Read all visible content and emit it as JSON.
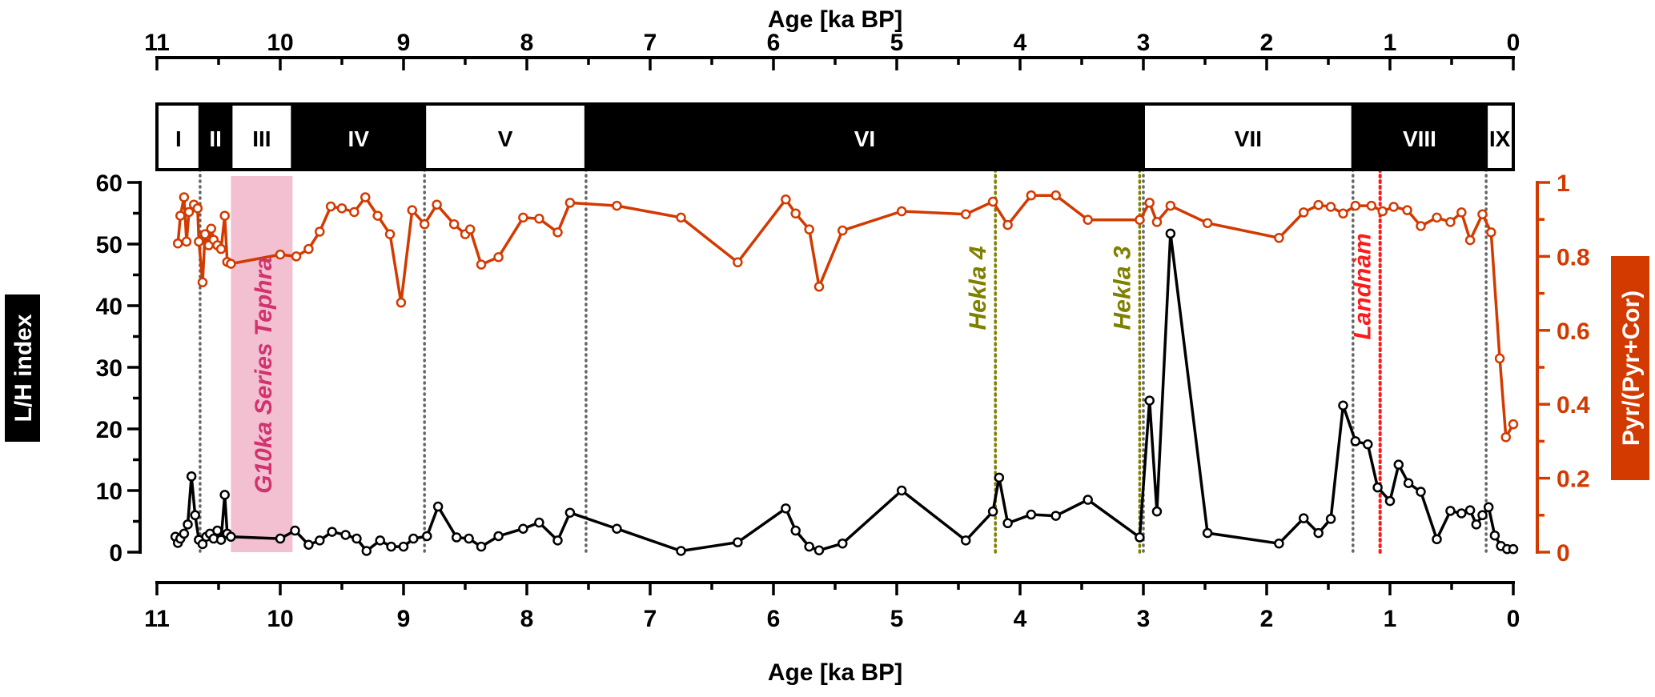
{
  "chart_data": {
    "type": "line",
    "x_title_top": "Age [ka BP]",
    "x_title_bottom": "Age [ka BP]",
    "xlim": [
      11,
      0
    ],
    "x_ticks": [
      "11",
      "10",
      "9",
      "8",
      "7",
      "6",
      "5",
      "4",
      "3",
      "2",
      "1",
      "0"
    ],
    "y_left": {
      "label": "L/H index",
      "ylim": [
        0,
        60
      ],
      "ticks": [
        "0",
        "10",
        "20",
        "30",
        "40",
        "50",
        "60"
      ],
      "color": "#000000"
    },
    "y_right": {
      "label": "Pyr/(Pyr+Cor)",
      "ylim": [
        0,
        1
      ],
      "ticks": [
        "0",
        "0.2",
        "0.4",
        "0.6",
        "0.8",
        "1"
      ],
      "color": "#d23a00"
    },
    "zones": [
      {
        "label": "I",
        "from": 11,
        "to": 10.65,
        "fill": "white"
      },
      {
        "label": "II",
        "from": 10.65,
        "to": 10.4,
        "fill": "black"
      },
      {
        "label": "III",
        "from": 10.4,
        "to": 9.9,
        "fill": "white"
      },
      {
        "label": "IV",
        "from": 9.9,
        "to": 8.83,
        "fill": "black"
      },
      {
        "label": "V",
        "from": 8.83,
        "to": 7.52,
        "fill": "white"
      },
      {
        "label": "VI",
        "from": 7.52,
        "to": 3.0,
        "fill": "black"
      },
      {
        "label": "VII",
        "from": 3.0,
        "to": 1.3,
        "fill": "white"
      },
      {
        "label": "VIII",
        "from": 1.3,
        "to": 0.22,
        "fill": "black"
      },
      {
        "label": "IX",
        "from": 0.22,
        "to": 0,
        "fill": "white"
      }
    ],
    "zone_boundaries": [
      10.65,
      8.83,
      7.52,
      3.0,
      1.3,
      0.22
    ],
    "annotations": [
      {
        "label": "G10ka Series Tephra",
        "type": "band",
        "from": 10.4,
        "to": 9.9,
        "color": "#f2c0d0",
        "text_color": "#d1336e"
      },
      {
        "label": "Hekla 4",
        "type": "line",
        "x": 4.2,
        "color": "#808000"
      },
      {
        "label": "Hekla 3",
        "type": "line",
        "x": 3.03,
        "color": "#808000"
      },
      {
        "label": "Landnàm",
        "type": "line",
        "x": 1.08,
        "color": "#ff1a1a"
      }
    ],
    "series": [
      {
        "name": "L/H index",
        "axis": "left",
        "color": "#000000",
        "x": [
          10.85,
          10.83,
          10.81,
          10.78,
          10.75,
          10.72,
          10.69,
          10.66,
          10.63,
          10.6,
          10.57,
          10.54,
          10.51,
          10.48,
          10.45,
          10.43,
          10.4,
          10.0,
          9.88,
          9.77,
          9.68,
          9.58,
          9.47,
          9.38,
          9.3,
          9.19,
          9.1,
          9.0,
          8.92,
          8.81,
          8.72,
          8.57,
          8.47,
          8.37,
          8.23,
          8.03,
          7.9,
          7.75,
          7.65,
          7.27,
          6.75,
          6.29,
          5.9,
          5.82,
          5.71,
          5.63,
          5.44,
          4.96,
          4.44,
          4.22,
          4.17,
          4.1,
          3.91,
          3.71,
          3.45,
          3.03,
          2.95,
          2.89,
          2.78,
          2.48,
          1.9,
          1.7,
          1.58,
          1.48,
          1.38,
          1.28,
          1.18,
          1.1,
          1.0,
          0.93,
          0.85,
          0.75,
          0.62,
          0.51,
          0.42,
          0.35,
          0.3,
          0.25,
          0.2,
          0.15,
          0.1,
          0.05,
          0.0
        ],
        "y": [
          2.5,
          1.5,
          2.2,
          3,
          4.5,
          12.3,
          6,
          2,
          1.3,
          2.5,
          3,
          2.2,
          3.5,
          2,
          9.3,
          3,
          2.5,
          2.2,
          3.5,
          1.2,
          1.9,
          3.3,
          2.8,
          2.2,
          0.2,
          1.9,
          0.9,
          0.9,
          2.2,
          2.6,
          7.4,
          2.4,
          2.2,
          0.9,
          2.6,
          3.8,
          4.8,
          1.9,
          6.4,
          3.8,
          0.2,
          1.6,
          7.1,
          3.5,
          0.9,
          0.3,
          1.4,
          10,
          1.9,
          6.6,
          12.1,
          4.7,
          6.1,
          5.9,
          8.5,
          2.4,
          24.6,
          6.6,
          51.7,
          3.1,
          1.4,
          5.5,
          3.1,
          5.4,
          23.8,
          18,
          17.5,
          10.5,
          8.3,
          14.2,
          11.2,
          9.8,
          2.1,
          6.7,
          6.3,
          6.8,
          4.5,
          6.0,
          7.3,
          2.7,
          1.0,
          0.5,
          0.5
        ]
      },
      {
        "name": "Pyr/(Pyr+Cor)",
        "axis": "right",
        "color": "#d23a00",
        "x": [
          10.83,
          10.81,
          10.78,
          10.76,
          10.74,
          10.7,
          10.67,
          10.66,
          10.63,
          10.61,
          10.58,
          10.56,
          10.54,
          10.51,
          10.48,
          10.45,
          10.43,
          10.4,
          10.0,
          9.87,
          9.77,
          9.68,
          9.59,
          9.5,
          9.4,
          9.31,
          9.21,
          9.11,
          9.02,
          8.93,
          8.83,
          8.73,
          8.59,
          8.5,
          8.46,
          8.37,
          8.23,
          8.03,
          7.9,
          7.75,
          7.65,
          7.27,
          6.75,
          6.29,
          5.9,
          5.82,
          5.71,
          5.63,
          5.44,
          4.96,
          4.44,
          4.22,
          4.1,
          3.91,
          3.71,
          3.45,
          3.03,
          2.95,
          2.89,
          2.78,
          2.48,
          1.9,
          1.7,
          1.58,
          1.48,
          1.38,
          1.28,
          1.15,
          1.06,
          0.97,
          0.86,
          0.75,
          0.62,
          0.51,
          0.42,
          0.35,
          0.25,
          0.18,
          0.11,
          0.06,
          0.0
        ],
        "y": [
          0.835,
          0.91,
          0.96,
          0.84,
          0.92,
          0.94,
          0.93,
          0.84,
          0.73,
          0.86,
          0.83,
          0.875,
          0.845,
          0.83,
          0.82,
          0.91,
          0.785,
          0.78,
          0.805,
          0.8,
          0.82,
          0.867,
          0.935,
          0.93,
          0.92,
          0.96,
          0.91,
          0.86,
          0.675,
          0.925,
          0.887,
          0.94,
          0.887,
          0.86,
          0.873,
          0.778,
          0.798,
          0.905,
          0.902,
          0.865,
          0.945,
          0.937,
          0.905,
          0.784,
          0.954,
          0.916,
          0.873,
          0.718,
          0.87,
          0.922,
          0.914,
          0.948,
          0.885,
          0.965,
          0.965,
          0.899,
          0.899,
          0.945,
          0.893,
          0.937,
          0.89,
          0.85,
          0.919,
          0.939,
          0.934,
          0.916,
          0.937,
          0.937,
          0.922,
          0.934,
          0.925,
          0.882,
          0.905,
          0.893,
          0.919,
          0.844,
          0.914,
          0.865,
          0.524,
          0.311,
          0.346
        ]
      }
    ]
  }
}
